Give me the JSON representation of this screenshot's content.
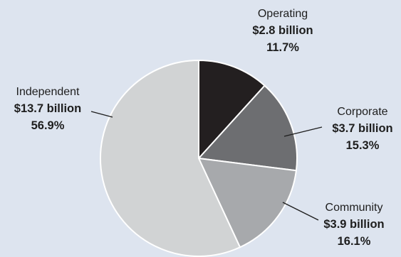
{
  "chart_data": {
    "type": "pie",
    "slices": [
      {
        "name": "Operating",
        "value_label": "$2.8 billion",
        "value": 2.8,
        "percent": 11.7,
        "percent_label": "11.7%",
        "color": "#231f20"
      },
      {
        "name": "Corporate",
        "value_label": "$3.7 billion",
        "value": 3.7,
        "percent": 15.3,
        "percent_label": "15.3%",
        "color": "#6d6e71"
      },
      {
        "name": "Community",
        "value_label": "$3.9 billion",
        "value": 3.9,
        "percent": 16.1,
        "percent_label": "16.1%",
        "color": "#a7a9ac"
      },
      {
        "name": "Independent",
        "value_label": "$13.7 billion",
        "value": 13.7,
        "percent": 56.9,
        "percent_label": "56.9%",
        "color": "#d1d3d4"
      }
    ]
  }
}
